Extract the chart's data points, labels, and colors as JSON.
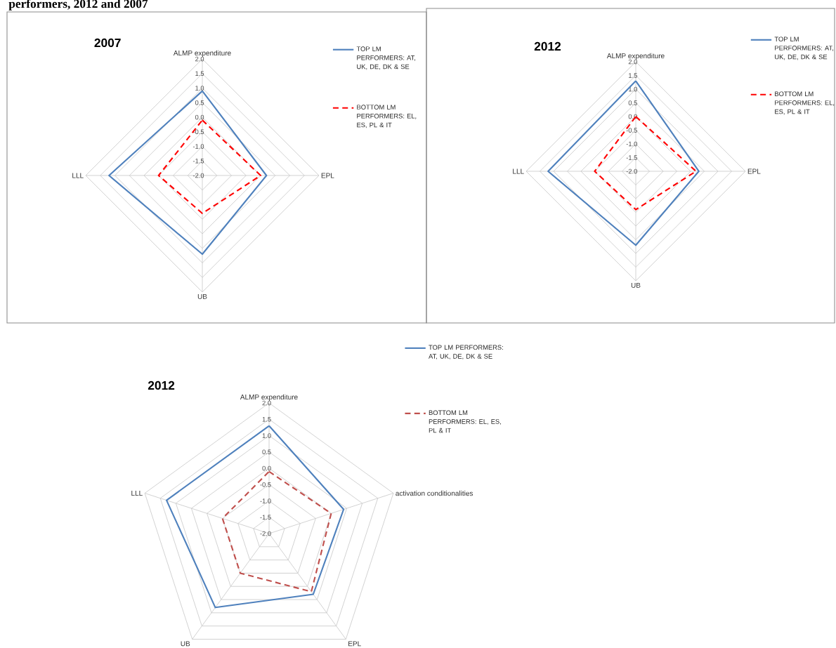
{
  "chart_data": [
    {
      "type": "radar",
      "title": "2007",
      "annotations": [
        "performers, 2012 and 2007"
      ],
      "categories": [
        "ALMP expenditure",
        "EPL",
        "UB",
        "LLL"
      ],
      "ylim": [
        -2,
        2
      ],
      "yticks": [
        {
          "value": -2,
          "label": "-2.0"
        },
        {
          "value": -1.5,
          "label": "-1.5"
        },
        {
          "value": -1,
          "label": "-1.0"
        },
        {
          "value": -0.5,
          "label": "-0.5"
        },
        {
          "value": 0,
          "label": "0.0"
        },
        {
          "value": 0.5,
          "label": "0.5"
        },
        {
          "value": 1,
          "label": "1.0"
        },
        {
          "value": 1.5,
          "label": "1.5"
        },
        {
          "value": 2,
          "label": "2.0"
        }
      ],
      "grid": true,
      "legend": "top right",
      "series": [
        {
          "name": "TOP LM PERFORMERS: AT, UK, DE, DK & SE",
          "color": "#4f81bd",
          "line_style": "solid",
          "values": [
            0.9,
            0.2,
            0.7,
            1.2
          ]
        },
        {
          "name": "BOTTOM LM PERFORMERS: EL, ES, PL & IT",
          "color": "#ff0000",
          "line_style": "dashed",
          "values": [
            -0.1,
            0.0,
            -0.7,
            -0.5
          ]
        }
      ]
    },
    {
      "type": "radar",
      "title": "2012",
      "categories": [
        "ALMP expenditure",
        "EPL",
        "UB",
        "LLL"
      ],
      "ylim": [
        -2,
        2
      ],
      "yticks": [
        {
          "value": -2,
          "label": "-2.0"
        },
        {
          "value": -1.5,
          "label": "-1.5"
        },
        {
          "value": -1,
          "label": "-1.0"
        },
        {
          "value": -0.5,
          "label": "-0.5"
        },
        {
          "value": 0,
          "label": "0.0"
        },
        {
          "value": 0.5,
          "label": "0.5"
        },
        {
          "value": 1,
          "label": "1.0"
        },
        {
          "value": 1.5,
          "label": "1.5"
        },
        {
          "value": 2,
          "label": "2.0"
        }
      ],
      "grid": true,
      "legend": "top right",
      "series": [
        {
          "name": "TOP LM PERFORMERS: AT, UK, DE, DK & SE",
          "color": "#4f81bd",
          "line_style": "solid",
          "values": [
            1.3,
            0.3,
            0.7,
            1.2
          ]
        },
        {
          "name": "BOTTOM LM PERFORMERS: EL, ES, PL & IT",
          "color": "#ff0000",
          "line_style": "dashed",
          "values": [
            0.0,
            0.2,
            -0.6,
            -0.5
          ]
        }
      ]
    },
    {
      "type": "radar",
      "title": "2012",
      "categories": [
        "ALMP expenditure",
        "activation conditionalities",
        "EPL",
        "UB",
        "LLL"
      ],
      "ylim": [
        -2,
        2
      ],
      "yticks": [
        {
          "value": -2,
          "label": "-2.0"
        },
        {
          "value": -1.5,
          "label": "-1.5"
        },
        {
          "value": -1,
          "label": "-1.0"
        },
        {
          "value": -0.5,
          "label": "-0.5"
        },
        {
          "value": 0,
          "label": "0.0"
        },
        {
          "value": 0.5,
          "label": "0.5"
        },
        {
          "value": 1,
          "label": "1.0"
        },
        {
          "value": 1.5,
          "label": "1.5"
        },
        {
          "value": 2,
          "label": "2.0"
        }
      ],
      "grid": true,
      "legend": "top right",
      "series": [
        {
          "name": "TOP LM PERFORMERS: AT, UK, DE, DK & SE",
          "color": "#4f81bd",
          "line_style": "solid",
          "values": [
            1.3,
            0.4,
            0.3,
            0.8,
            1.3
          ]
        },
        {
          "name": "BOTTOM LM PERFORMERS: EL, ES, PL & IT",
          "color": "#c0504d",
          "line_style": "dashed",
          "values": [
            -0.1,
            0.0,
            0.2,
            -0.5,
            -0.5
          ]
        }
      ]
    }
  ]
}
